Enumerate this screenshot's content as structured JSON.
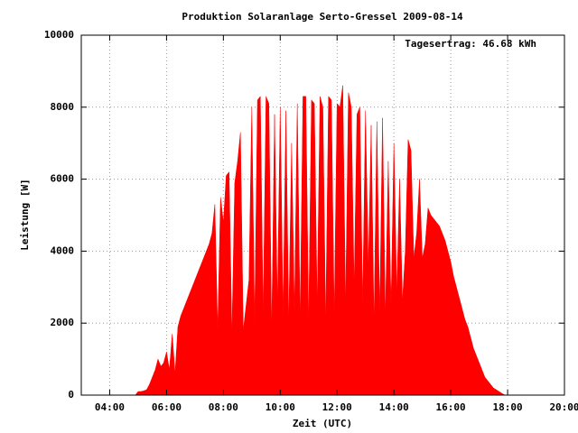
{
  "chart_data": {
    "type": "area",
    "title": "Produktion Solaranlage Serto-Gressel 2009-08-14",
    "annotation": "Tagesertrag: 46.68 kWh",
    "xlabel": "Zeit (UTC)",
    "ylabel": "Leistung [W]",
    "color": "#ff0000",
    "grid": true,
    "xlim": [
      3,
      20
    ],
    "ylim": [
      0,
      10000
    ],
    "xticks": [
      {
        "value": 4,
        "label": "04:00"
      },
      {
        "value": 6,
        "label": "06:00"
      },
      {
        "value": 8,
        "label": "08:00"
      },
      {
        "value": 10,
        "label": "10:00"
      },
      {
        "value": 12,
        "label": "12:00"
      },
      {
        "value": 14,
        "label": "14:00"
      },
      {
        "value": 16,
        "label": "16:00"
      },
      {
        "value": 18,
        "label": "18:00"
      },
      {
        "value": 20,
        "label": "20:00"
      }
    ],
    "yticks": [
      0,
      2000,
      4000,
      6000,
      8000,
      10000
    ],
    "x": [
      4.9,
      5.0,
      5.1,
      5.2,
      5.3,
      5.4,
      5.5,
      5.6,
      5.7,
      5.8,
      5.9,
      6.0,
      6.1,
      6.2,
      6.3,
      6.4,
      6.5,
      6.6,
      6.7,
      6.8,
      6.9,
      7.0,
      7.1,
      7.2,
      7.3,
      7.4,
      7.5,
      7.6,
      7.7,
      7.8,
      7.9,
      8.0,
      8.1,
      8.2,
      8.3,
      8.4,
      8.5,
      8.6,
      8.7,
      8.8,
      8.9,
      9.0,
      9.1,
      9.2,
      9.3,
      9.4,
      9.5,
      9.6,
      9.7,
      9.8,
      9.9,
      10.0,
      10.1,
      10.2,
      10.3,
      10.4,
      10.5,
      10.6,
      10.7,
      10.8,
      10.9,
      11.0,
      11.1,
      11.2,
      11.3,
      11.4,
      11.5,
      11.6,
      11.7,
      11.8,
      11.9,
      12.0,
      12.1,
      12.2,
      12.3,
      12.4,
      12.5,
      12.6,
      12.7,
      12.8,
      12.9,
      13.0,
      13.1,
      13.2,
      13.3,
      13.4,
      13.5,
      13.6,
      13.7,
      13.8,
      13.9,
      14.0,
      14.1,
      14.2,
      14.3,
      14.4,
      14.5,
      14.6,
      14.7,
      14.8,
      14.9,
      15.0,
      15.1,
      15.2,
      15.3,
      15.4,
      15.5,
      15.6,
      15.7,
      15.8,
      15.9,
      16.0,
      16.1,
      16.2,
      16.3,
      16.4,
      16.5,
      16.6,
      16.7,
      16.8,
      16.9,
      17.0,
      17.1,
      17.2,
      17.3,
      17.4,
      17.5,
      17.6,
      17.7,
      17.8,
      17.9
    ],
    "values": [
      0,
      100,
      100,
      120,
      150,
      300,
      500,
      700,
      1000,
      800,
      900,
      1200,
      700,
      1700,
      600,
      1900,
      2200,
      2400,
      2600,
      2800,
      3000,
      3200,
      3400,
      3600,
      3800,
      4000,
      4200,
      4500,
      5300,
      1800,
      5500,
      4800,
      6100,
      6200,
      1700,
      5900,
      6500,
      7300,
      1800,
      2500,
      3200,
      8000,
      2000,
      8200,
      8300,
      2200,
      8300,
      8100,
      1800,
      7800,
      2500,
      8000,
      2200,
      7900,
      2000,
      7000,
      2300,
      8100,
      2100,
      8300,
      8300,
      2000,
      8200,
      8100,
      2500,
      8300,
      8000,
      2000,
      8300,
      8200,
      2200,
      8100,
      8000,
      8600,
      2500,
      8400,
      8000,
      3000,
      7800,
      8000,
      2500,
      7900,
      3500,
      7500,
      2000,
      7600,
      2300,
      7700,
      2200,
      6500,
      2500,
      7000,
      2800,
      6000,
      2600,
      4000,
      7100,
      6800,
      3800,
      4500,
      6000,
      3800,
      4200,
      5200,
      5000,
      4900,
      4800,
      4700,
      4500,
      4300,
      4000,
      3700,
      3300,
      3000,
      2700,
      2400,
      2100,
      1900,
      1600,
      1300,
      1100,
      900,
      700,
      500,
      400,
      300,
      200,
      150,
      100,
      50,
      0
    ]
  }
}
